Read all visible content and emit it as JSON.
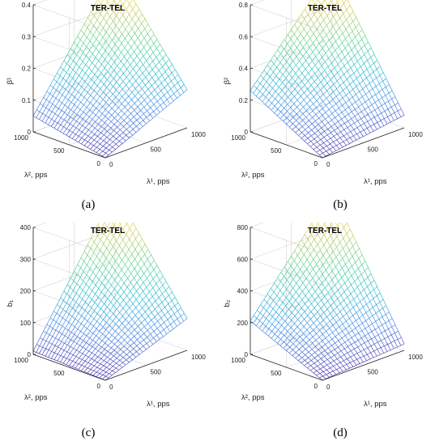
{
  "chart_data": [
    {
      "type": "surface",
      "panel": "(a)",
      "title": "TER-TEL",
      "xlabel": "λ¹, pps",
      "ylabel": "λ², pps",
      "zlabel": "β¹",
      "xlim": [
        0,
        1000
      ],
      "ylim": [
        0,
        1000
      ],
      "zlim": [
        0,
        0.4
      ],
      "xticks": [
        "0",
        "500",
        "1000"
      ],
      "yticks": [
        "0",
        "500",
        "1000"
      ],
      "zticks": [
        "0",
        "0.1",
        "0.2",
        "0.3",
        "0.4"
      ],
      "corner_values": {
        "origin": 0,
        "x_max": 0.12,
        "y_max": 0.05,
        "xy_max": 0.42
      },
      "colormap": "parula",
      "grid": true
    },
    {
      "type": "surface",
      "panel": "(b)",
      "title": "TER-TEL",
      "xlabel": "λ¹, pps",
      "ylabel": "λ², pps",
      "zlabel": "β²",
      "xlim": [
        0,
        1000
      ],
      "ylim": [
        0,
        1000
      ],
      "zlim": [
        0,
        0.8
      ],
      "xticks": [
        "0",
        "500",
        "1000"
      ],
      "yticks": [
        "0",
        "500",
        "1000"
      ],
      "zticks": [
        "0",
        "0.2",
        "0.4",
        "0.6",
        "0.8"
      ],
      "corner_values": {
        "origin": 0,
        "x_max": 0.08,
        "y_max": 0.26,
        "xy_max": 0.84
      },
      "colormap": "parula",
      "grid": true
    },
    {
      "type": "surface",
      "panel": "(c)",
      "title": "TER-TEL",
      "xlabel": "λ¹, pps",
      "ylabel": "λ², pps",
      "zlabel": "b₁",
      "xlim": [
        0,
        1000
      ],
      "ylim": [
        0,
        1000
      ],
      "zlim": [
        0,
        400
      ],
      "xticks": [
        "0",
        "500",
        "1000"
      ],
      "yticks": [
        "0",
        "500",
        "1000"
      ],
      "zticks": [
        "0",
        "100",
        "200",
        "300",
        "400"
      ],
      "corner_values": {
        "origin": 0,
        "x_max": 100,
        "y_max": 10,
        "xy_max": 420
      },
      "colormap": "parula",
      "grid": true
    },
    {
      "type": "surface",
      "panel": "(d)",
      "title": "TER-TEL",
      "xlabel": "λ¹, pps",
      "ylabel": "λ², pps",
      "zlabel": "b₂",
      "xlim": [
        0,
        1000
      ],
      "ylim": [
        0,
        1000
      ],
      "zlim": [
        0,
        800
      ],
      "xticks": [
        "0",
        "500",
        "1000"
      ],
      "yticks": [
        "0",
        "500",
        "1000"
      ],
      "zticks": [
        "0",
        "200",
        "400",
        "600",
        "800"
      ],
      "corner_values": {
        "origin": 0,
        "x_max": 40,
        "y_max": 210,
        "xy_max": 840
      },
      "colormap": "parula",
      "grid": true
    }
  ]
}
